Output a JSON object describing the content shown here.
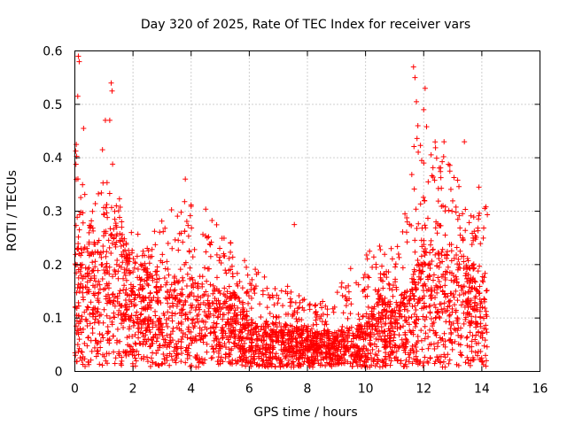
{
  "chart_data": {
    "type": "scatter",
    "title": "Day 320 of 2025, Rate Of TEC Index for receiver vars",
    "xlabel": "GPS time / hours",
    "ylabel": "ROTI / TECUs",
    "xlim": [
      0,
      16
    ],
    "ylim": [
      0,
      0.6
    ],
    "xticks": [
      "0",
      "2",
      "4",
      "6",
      "8",
      "10",
      "12",
      "14",
      "16"
    ],
    "yticks": [
      "0",
      "0.1",
      "0.2",
      "0.3",
      "0.4",
      "0.5",
      "0.6"
    ],
    "grid": true,
    "marker": "+",
    "color": "#ff0000",
    "data_time_range": [
      0,
      14.2
    ],
    "envelope": {
      "x": [
        0,
        0.1,
        0.2,
        0.5,
        1.0,
        1.3,
        2.0,
        3.0,
        4.0,
        5.0,
        5.6,
        6.0,
        7.0,
        8.0,
        9.0,
        10.0,
        10.5,
        11.0,
        11.5,
        11.8,
        12.0,
        12.5,
        13.0,
        13.5,
        14.0,
        14.2
      ],
      "typical": [
        0.12,
        0.14,
        0.13,
        0.14,
        0.15,
        0.17,
        0.12,
        0.1,
        0.1,
        0.09,
        0.08,
        0.05,
        0.05,
        0.04,
        0.04,
        0.05,
        0.08,
        0.07,
        0.09,
        0.12,
        0.14,
        0.13,
        0.13,
        0.12,
        0.11,
        0.1
      ],
      "high": [
        0.42,
        0.45,
        0.36,
        0.33,
        0.37,
        0.4,
        0.25,
        0.3,
        0.33,
        0.28,
        0.22,
        0.2,
        0.17,
        0.14,
        0.18,
        0.22,
        0.24,
        0.24,
        0.35,
        0.5,
        0.48,
        0.42,
        0.38,
        0.36,
        0.33,
        0.3
      ]
    },
    "notable_points": [
      {
        "x": 0.12,
        "y": 0.59
      },
      {
        "x": 0.15,
        "y": 0.58
      },
      {
        "x": 0.1,
        "y": 0.515
      },
      {
        "x": 0.3,
        "y": 0.455
      },
      {
        "x": 1.25,
        "y": 0.54
      },
      {
        "x": 1.28,
        "y": 0.525
      },
      {
        "x": 1.05,
        "y": 0.47
      },
      {
        "x": 1.2,
        "y": 0.47
      },
      {
        "x": 0.95,
        "y": 0.415
      },
      {
        "x": 0.05,
        "y": 0.425
      },
      {
        "x": 3.8,
        "y": 0.36
      },
      {
        "x": 7.55,
        "y": 0.275
      },
      {
        "x": 11.65,
        "y": 0.57
      },
      {
        "x": 11.7,
        "y": 0.55
      },
      {
        "x": 11.75,
        "y": 0.505
      },
      {
        "x": 12.05,
        "y": 0.53
      },
      {
        "x": 12.0,
        "y": 0.49
      },
      {
        "x": 11.8,
        "y": 0.46
      },
      {
        "x": 12.7,
        "y": 0.43
      },
      {
        "x": 13.4,
        "y": 0.43
      },
      {
        "x": 12.9,
        "y": 0.375
      },
      {
        "x": 13.9,
        "y": 0.345
      }
    ]
  }
}
